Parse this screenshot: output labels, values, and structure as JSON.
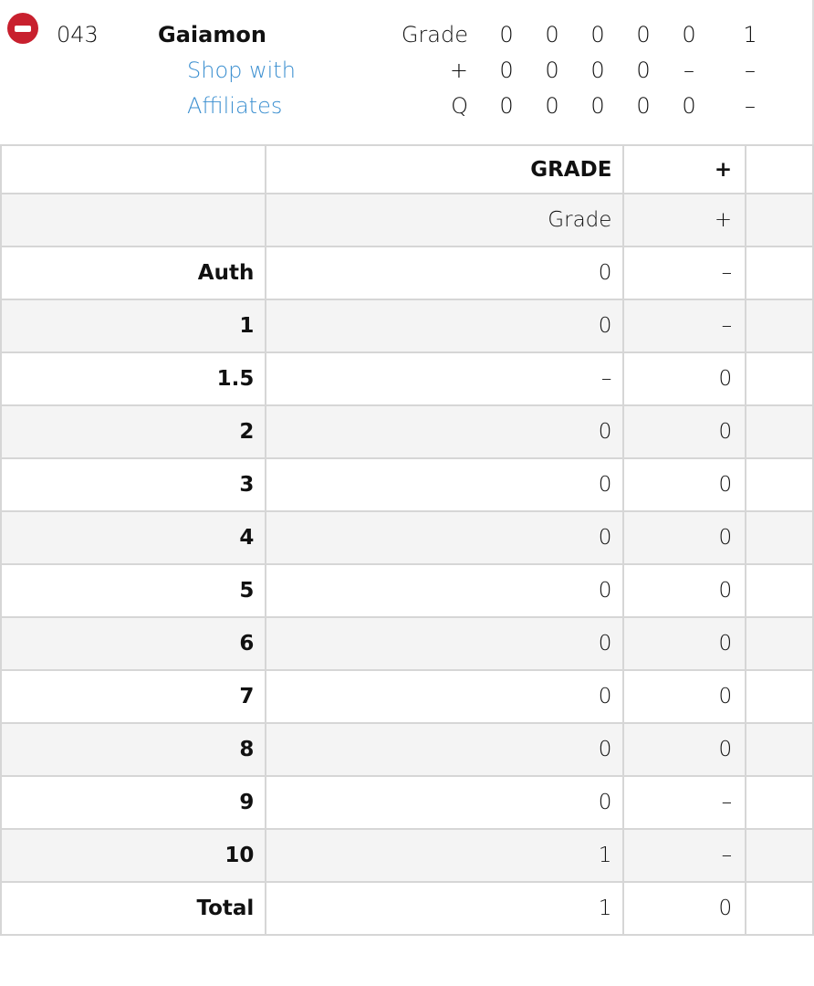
{
  "card": {
    "number": "043",
    "name": "Gaiamon",
    "links": [
      "Shop with",
      "Affiliates"
    ]
  },
  "summary": [
    {
      "label": "Grade",
      "values": [
        "0",
        "0",
        "0",
        "0",
        "0",
        "1"
      ]
    },
    {
      "label": "+",
      "values": [
        "0",
        "0",
        "0",
        "0",
        "–",
        "–"
      ]
    },
    {
      "label": "Q",
      "values": [
        "0",
        "0",
        "0",
        "0",
        "0",
        "–"
      ]
    }
  ],
  "table": {
    "header": [
      "",
      "GRADE",
      "+",
      ""
    ],
    "rows": [
      [
        "",
        "Grade",
        "+",
        ""
      ],
      [
        "Auth",
        "0",
        "–",
        ""
      ],
      [
        "1",
        "0",
        "–",
        ""
      ],
      [
        "1.5",
        "–",
        "0",
        ""
      ],
      [
        "2",
        "0",
        "0",
        ""
      ],
      [
        "3",
        "0",
        "0",
        ""
      ],
      [
        "4",
        "0",
        "0",
        ""
      ],
      [
        "5",
        "0",
        "0",
        ""
      ],
      [
        "6",
        "0",
        "0",
        ""
      ],
      [
        "7",
        "0",
        "0",
        ""
      ],
      [
        "8",
        "0",
        "0",
        ""
      ],
      [
        "9",
        "0",
        "–",
        ""
      ],
      [
        "10",
        "1",
        "–",
        ""
      ],
      [
        "Total",
        "1",
        "0",
        ""
      ]
    ]
  },
  "colors": {
    "remove": "#c8202e",
    "link": "#3b8fd0"
  }
}
